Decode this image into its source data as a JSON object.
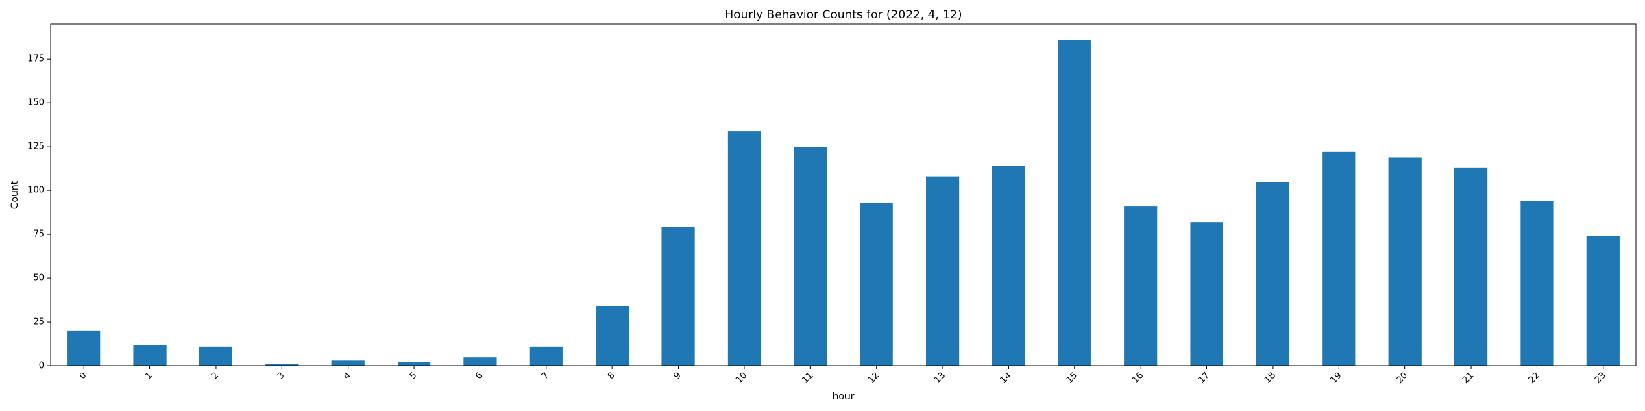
{
  "chart_data": {
    "type": "bar",
    "title": "Hourly Behavior Counts for (2022, 4, 12)",
    "xlabel": "hour",
    "ylabel": "Count",
    "categories": [
      "0",
      "1",
      "2",
      "3",
      "4",
      "5",
      "6",
      "7",
      "8",
      "9",
      "10",
      "11",
      "12",
      "13",
      "14",
      "15",
      "16",
      "17",
      "18",
      "19",
      "20",
      "21",
      "22",
      "23"
    ],
    "values": [
      20,
      12,
      11,
      1,
      3,
      2,
      5,
      11,
      34,
      79,
      134,
      125,
      93,
      108,
      114,
      186,
      91,
      82,
      105,
      122,
      119,
      113,
      94,
      74
    ],
    "yticks": [
      0,
      25,
      50,
      75,
      100,
      125,
      150,
      175
    ],
    "ylim": [
      0,
      195
    ],
    "bar_color": "#1f77b4",
    "grid": false,
    "legend": "none"
  }
}
